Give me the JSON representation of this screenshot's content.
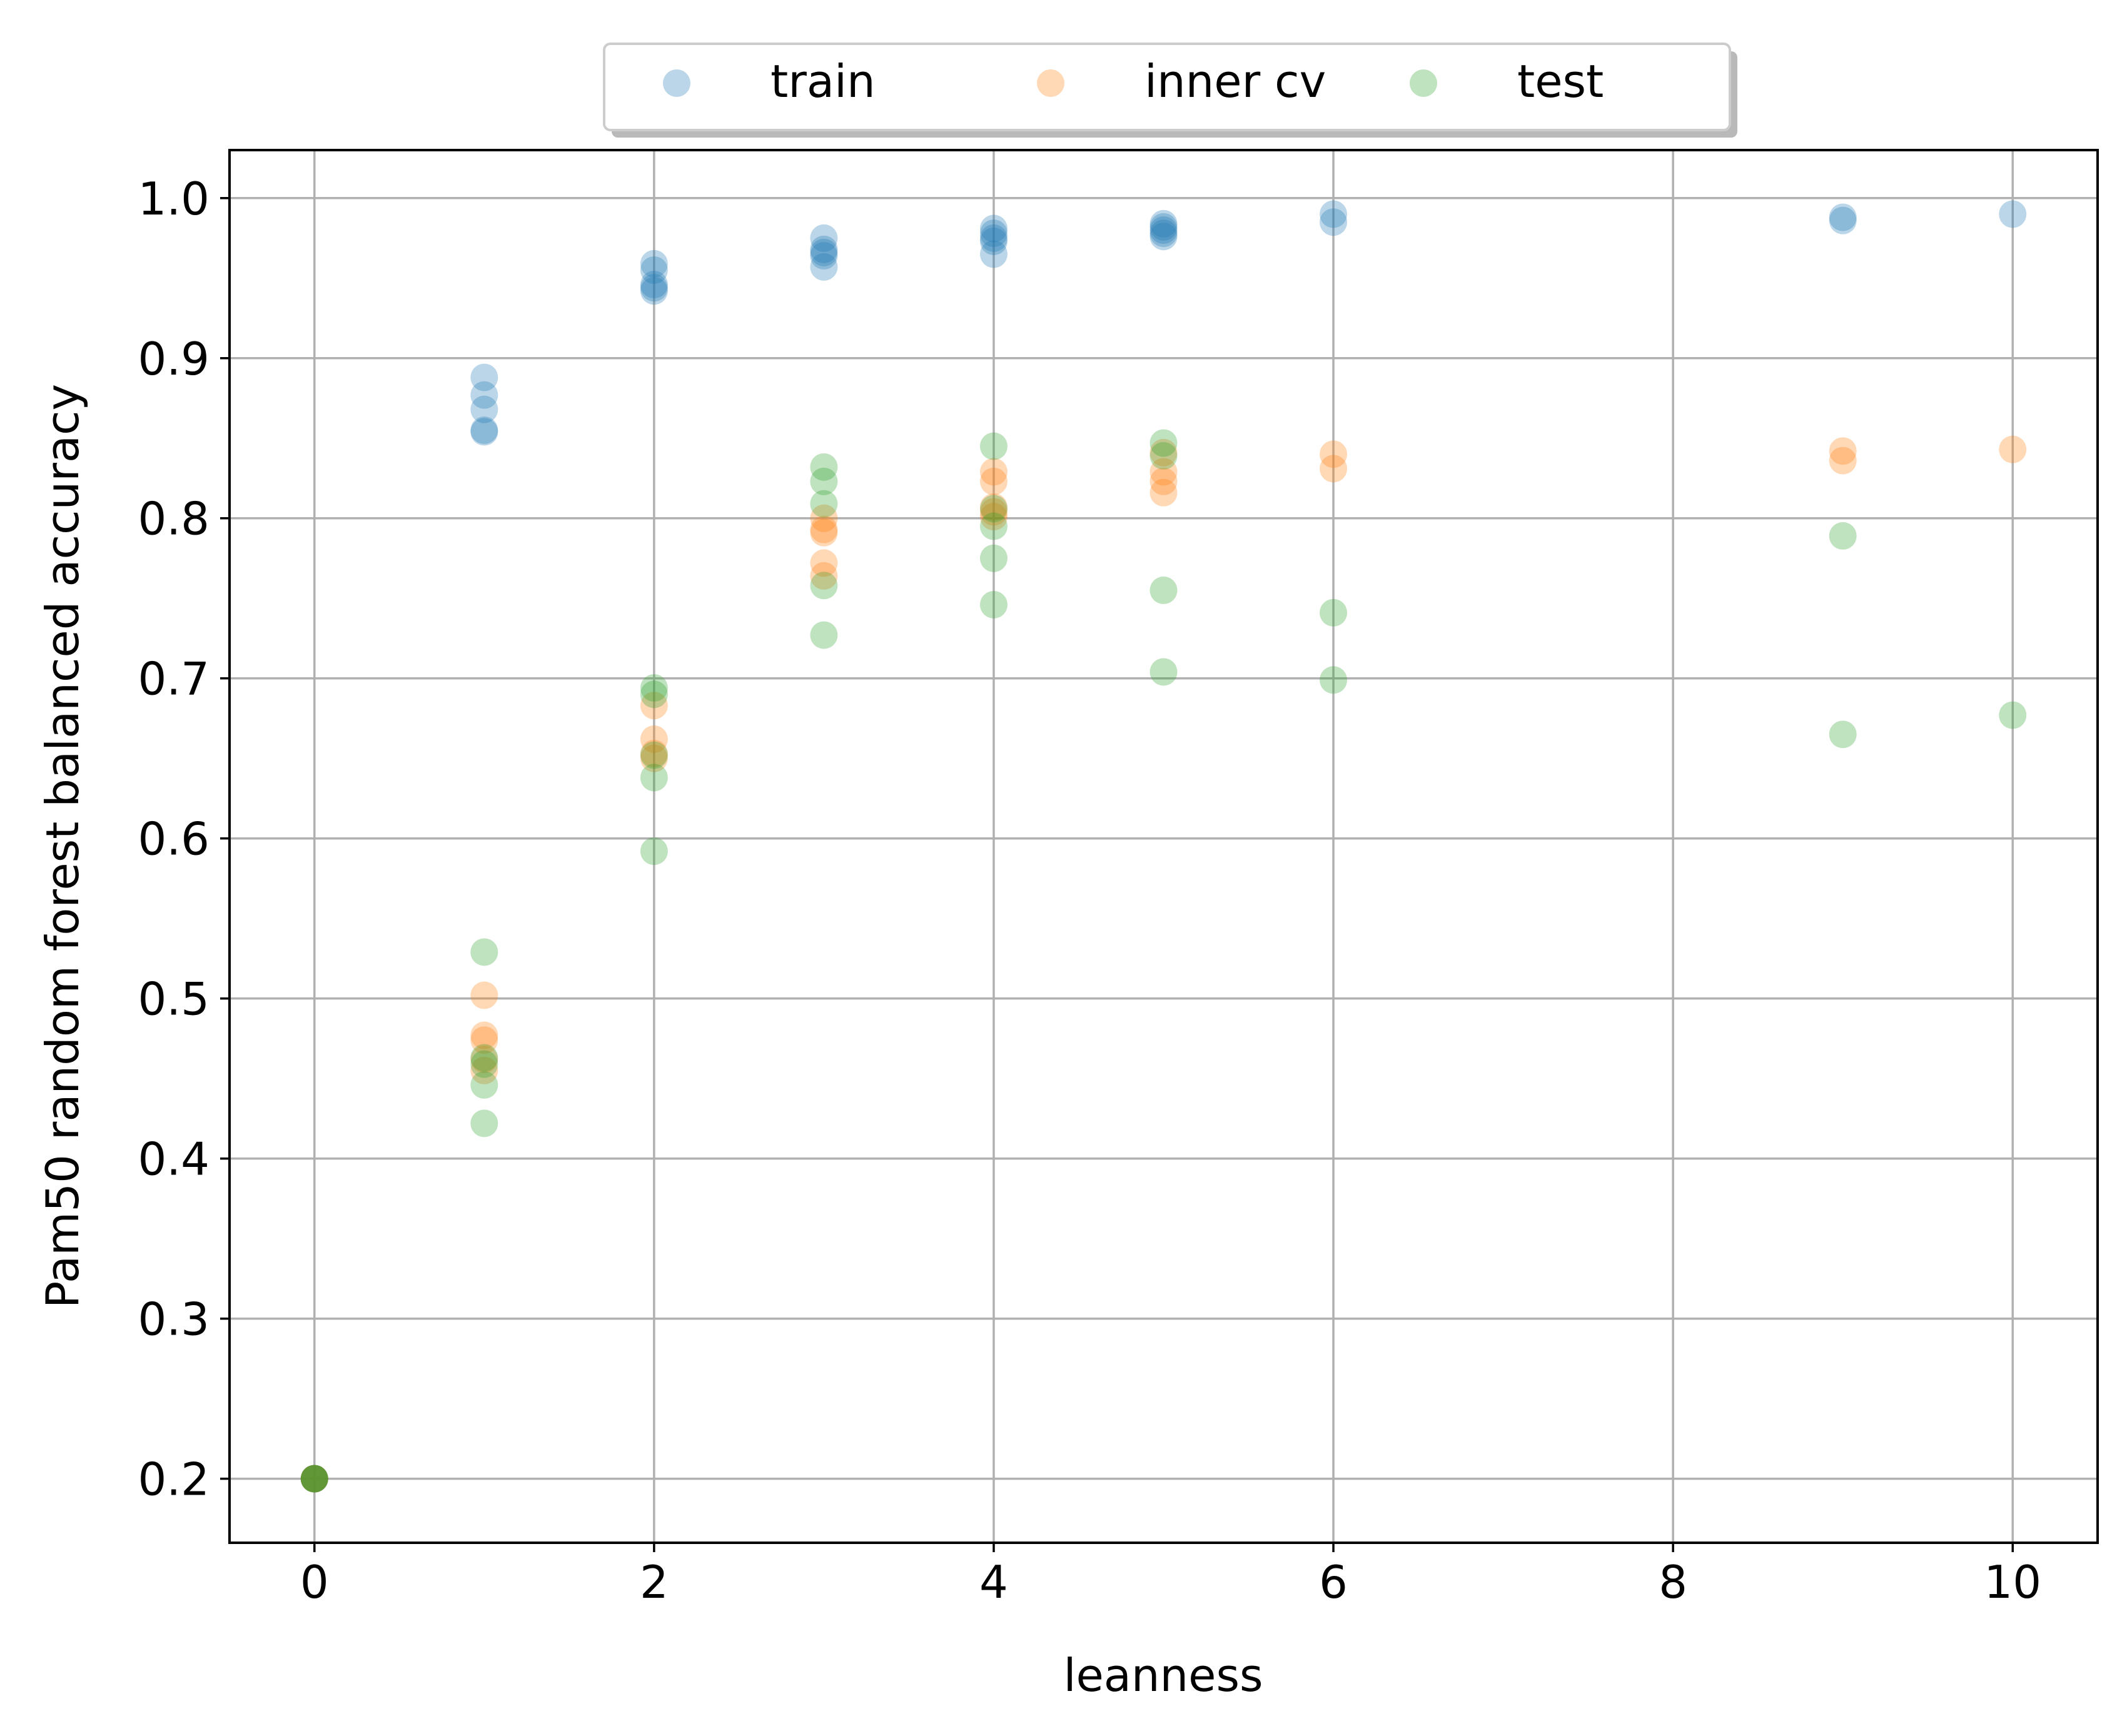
{
  "chart_data": {
    "type": "scatter",
    "title": "",
    "xlabel": "leanness",
    "ylabel": "Pam50 random forest balanced accuracy",
    "xlim": [
      -0.5,
      10.5
    ],
    "ylim": [
      0.16,
      1.03
    ],
    "xticks": [
      0,
      2,
      4,
      6,
      8,
      10
    ],
    "yticks": [
      0.2,
      0.3,
      0.4,
      0.5,
      0.6,
      0.7,
      0.8,
      0.9,
      1.0
    ],
    "xtick_labels": [
      "0",
      "2",
      "4",
      "6",
      "8",
      "10"
    ],
    "ytick_labels": [
      "0.2",
      "0.3",
      "0.4",
      "0.5",
      "0.6",
      "0.7",
      "0.8",
      "0.9",
      "1.0"
    ],
    "grid": true,
    "legend": {
      "placement": "top-center-outside",
      "columns": 3,
      "shadow": true
    },
    "marker_alpha": 0.3,
    "series": [
      {
        "name": "train",
        "color": "#1f77b4",
        "points": [
          {
            "x": 0,
            "y": 0.2
          },
          {
            "x": 0,
            "y": 0.2
          },
          {
            "x": 0,
            "y": 0.2
          },
          {
            "x": 1,
            "y": 0.888
          },
          {
            "x": 1,
            "y": 0.877
          },
          {
            "x": 1,
            "y": 0.868
          },
          {
            "x": 1,
            "y": 0.855
          },
          {
            "x": 1,
            "y": 0.854
          },
          {
            "x": 2,
            "y": 0.959
          },
          {
            "x": 2,
            "y": 0.955
          },
          {
            "x": 2,
            "y": 0.946
          },
          {
            "x": 2,
            "y": 0.944
          },
          {
            "x": 2,
            "y": 0.942
          },
          {
            "x": 3,
            "y": 0.975
          },
          {
            "x": 3,
            "y": 0.968
          },
          {
            "x": 3,
            "y": 0.966
          },
          {
            "x": 3,
            "y": 0.964
          },
          {
            "x": 3,
            "y": 0.957
          },
          {
            "x": 4,
            "y": 0.981
          },
          {
            "x": 4,
            "y": 0.978
          },
          {
            "x": 4,
            "y": 0.975
          },
          {
            "x": 4,
            "y": 0.973
          },
          {
            "x": 4,
            "y": 0.965
          },
          {
            "x": 5,
            "y": 0.984
          },
          {
            "x": 5,
            "y": 0.982
          },
          {
            "x": 5,
            "y": 0.98
          },
          {
            "x": 5,
            "y": 0.978
          },
          {
            "x": 5,
            "y": 0.976
          },
          {
            "x": 6,
            "y": 0.99
          },
          {
            "x": 6,
            "y": 0.985
          },
          {
            "x": 9,
            "y": 0.988
          },
          {
            "x": 9,
            "y": 0.986
          },
          {
            "x": 10,
            "y": 0.99
          }
        ]
      },
      {
        "name": "inner cv",
        "color": "#ff7f0e",
        "points": [
          {
            "x": 0,
            "y": 0.2
          },
          {
            "x": 0,
            "y": 0.2
          },
          {
            "x": 0,
            "y": 0.2
          },
          {
            "x": 1,
            "y": 0.502
          },
          {
            "x": 1,
            "y": 0.477
          },
          {
            "x": 1,
            "y": 0.474
          },
          {
            "x": 1,
            "y": 0.462
          },
          {
            "x": 1,
            "y": 0.455
          },
          {
            "x": 2,
            "y": 0.683
          },
          {
            "x": 2,
            "y": 0.662
          },
          {
            "x": 2,
            "y": 0.653
          },
          {
            "x": 2,
            "y": 0.65
          },
          {
            "x": 3,
            "y": 0.8
          },
          {
            "x": 3,
            "y": 0.793
          },
          {
            "x": 3,
            "y": 0.791
          },
          {
            "x": 3,
            "y": 0.772
          },
          {
            "x": 3,
            "y": 0.764
          },
          {
            "x": 4,
            "y": 0.829
          },
          {
            "x": 4,
            "y": 0.823
          },
          {
            "x": 4,
            "y": 0.807
          },
          {
            "x": 4,
            "y": 0.804
          },
          {
            "x": 4,
            "y": 0.801
          },
          {
            "x": 5,
            "y": 0.841
          },
          {
            "x": 5,
            "y": 0.829
          },
          {
            "x": 5,
            "y": 0.823
          },
          {
            "x": 5,
            "y": 0.816
          },
          {
            "x": 6,
            "y": 0.84
          },
          {
            "x": 6,
            "y": 0.831
          },
          {
            "x": 9,
            "y": 0.842
          },
          {
            "x": 9,
            "y": 0.836
          },
          {
            "x": 10,
            "y": 0.843
          }
        ]
      },
      {
        "name": "test",
        "color": "#2ca02c",
        "points": [
          {
            "x": 0,
            "y": 0.2
          },
          {
            "x": 0,
            "y": 0.2
          },
          {
            "x": 0,
            "y": 0.2
          },
          {
            "x": 1,
            "y": 0.529
          },
          {
            "x": 1,
            "y": 0.463
          },
          {
            "x": 1,
            "y": 0.459
          },
          {
            "x": 1,
            "y": 0.446
          },
          {
            "x": 1,
            "y": 0.422
          },
          {
            "x": 2,
            "y": 0.694
          },
          {
            "x": 2,
            "y": 0.69
          },
          {
            "x": 2,
            "y": 0.652
          },
          {
            "x": 2,
            "y": 0.638
          },
          {
            "x": 2,
            "y": 0.592
          },
          {
            "x": 3,
            "y": 0.832
          },
          {
            "x": 3,
            "y": 0.823
          },
          {
            "x": 3,
            "y": 0.809
          },
          {
            "x": 3,
            "y": 0.758
          },
          {
            "x": 3,
            "y": 0.727
          },
          {
            "x": 4,
            "y": 0.845
          },
          {
            "x": 4,
            "y": 0.806
          },
          {
            "x": 4,
            "y": 0.795
          },
          {
            "x": 4,
            "y": 0.775
          },
          {
            "x": 4,
            "y": 0.746
          },
          {
            "x": 5,
            "y": 0.847
          },
          {
            "x": 5,
            "y": 0.839
          },
          {
            "x": 5,
            "y": 0.755
          },
          {
            "x": 5,
            "y": 0.704
          },
          {
            "x": 6,
            "y": 0.741
          },
          {
            "x": 6,
            "y": 0.699
          },
          {
            "x": 9,
            "y": 0.789
          },
          {
            "x": 9,
            "y": 0.665
          },
          {
            "x": 10,
            "y": 0.677
          }
        ]
      }
    ]
  }
}
